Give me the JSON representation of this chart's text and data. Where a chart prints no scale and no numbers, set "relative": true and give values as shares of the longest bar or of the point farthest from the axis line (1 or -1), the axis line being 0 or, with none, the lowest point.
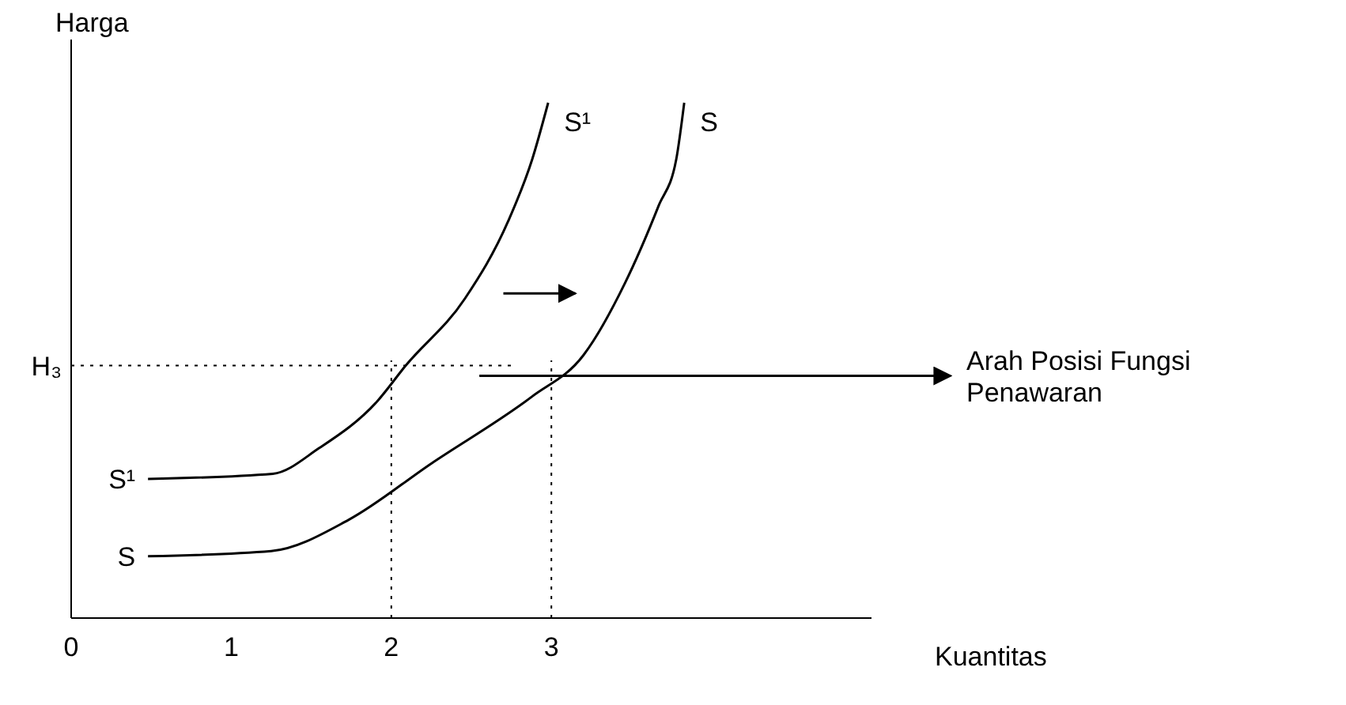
{
  "chart_data": {
    "type": "line",
    "relative": true,
    "xlabel": "Kuantitas",
    "ylabel": "Harga",
    "xlim": [
      0,
      5
    ],
    "xticks": [
      0,
      1,
      2,
      3
    ],
    "grid": false,
    "marker": "none",
    "line_style": "solid",
    "series": [
      {
        "name": "S¹",
        "color": "#000000",
        "x": [
          0.48,
          1.26,
          1.55,
          1.91,
          2.09,
          2.46,
          2.73,
          2.88,
          2.98
        ],
        "values": [
          0.27,
          0.28,
          0.33,
          0.42,
          0.49,
          0.62,
          0.77,
          0.89,
          1
        ]
      },
      {
        "name": "S",
        "color": "#000000",
        "x": [
          0.48,
          1.25,
          1.73,
          2.25,
          2.88,
          3.2,
          3.46,
          3.67,
          3.78,
          3.83
        ],
        "values": [
          0.12,
          0.13,
          0.19,
          0.3,
          0.43,
          0.51,
          0.65,
          0.8,
          0.89,
          1
        ]
      }
    ],
    "ref_lines": [
      {
        "axis": "y",
        "value": 0.49,
        "label": "H₃",
        "line_style": "dotted"
      },
      {
        "axis": "x",
        "value": 2,
        "line_style": "dotted"
      },
      {
        "axis": "x",
        "value": 3,
        "line_style": "dotted"
      }
    ],
    "annotations": [
      "Arah Posisi Fungsi Penawaran"
    ]
  }
}
